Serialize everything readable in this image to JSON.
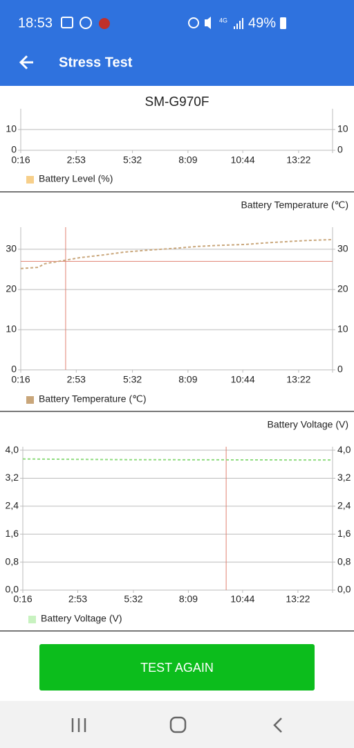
{
  "status_bar": {
    "time": "18:53",
    "network": "4G",
    "battery": "49%"
  },
  "app_bar": {
    "title": "Stress Test"
  },
  "device": "SM-G970F",
  "chart_data": [
    {
      "type": "line",
      "series": [
        {
          "name": "Battery Level (%)",
          "color": "#f7cf8a"
        }
      ],
      "xlim": [
        16,
        898
      ],
      "xticks": [
        {
          "value": 16,
          "label": "0:16"
        },
        {
          "value": 173,
          "label": "2:53"
        },
        {
          "value": 332,
          "label": "5:32"
        },
        {
          "value": 489,
          "label": "8:09"
        },
        {
          "value": 644,
          "label": "10:44"
        },
        {
          "value": 802,
          "label": "13:22"
        }
      ],
      "ylim": [
        0,
        20
      ],
      "yticks": [
        0,
        10
      ],
      "grid": true
    },
    {
      "type": "line",
      "title": "Battery Temperature (℃)",
      "x": [
        16,
        65,
        84,
        124,
        182,
        251,
        309,
        378,
        446,
        515,
        583,
        651,
        710,
        769,
        827,
        898
      ],
      "series": [
        {
          "name": "Battery Temperature (℃)",
          "color": "#c9a67a",
          "values": [
            25.2,
            25.5,
            26.4,
            27.0,
            27.9,
            28.6,
            29.3,
            29.8,
            30.2,
            30.7,
            31.0,
            31.2,
            31.6,
            31.9,
            32.2,
            32.4
          ]
        }
      ],
      "xlim": [
        16,
        898
      ],
      "xticks": [
        {
          "value": 16,
          "label": "0:16"
        },
        {
          "value": 173,
          "label": "2:53"
        },
        {
          "value": 332,
          "label": "5:32"
        },
        {
          "value": 489,
          "label": "8:09"
        },
        {
          "value": 644,
          "label": "10:44"
        },
        {
          "value": 802,
          "label": "13:22"
        }
      ],
      "ylim": [
        0,
        35.5
      ],
      "yticks": [
        0,
        10,
        20,
        30
      ],
      "grid": true,
      "crosshair": {
        "x": 143,
        "y": 27,
        "color": "#e08070"
      }
    },
    {
      "type": "line",
      "title": "Battery Voltage (V)",
      "x": [
        16,
        300,
        898
      ],
      "series": [
        {
          "name": "Battery Voltage (V)",
          "color": "#8fdc7f",
          "values": [
            3.75,
            3.73,
            3.72
          ]
        }
      ],
      "legend_color": "#c8f2c0",
      "xlim": [
        16,
        901
      ],
      "xticks": [
        {
          "value": 16,
          "label": "0:16"
        },
        {
          "value": 173,
          "label": "2:53"
        },
        {
          "value": 332,
          "label": "5:32"
        },
        {
          "value": 489,
          "label": "8:09"
        },
        {
          "value": 644,
          "label": "10:44"
        },
        {
          "value": 802,
          "label": "13:22"
        }
      ],
      "ylim": [
        0,
        4.1
      ],
      "yticks": [
        {
          "value": 0,
          "label": "0,0"
        },
        {
          "value": 0.8,
          "label": "0,8"
        },
        {
          "value": 1.6,
          "label": "1,6"
        },
        {
          "value": 2.4,
          "label": "2,4"
        },
        {
          "value": 3.2,
          "label": "3,2"
        },
        {
          "value": 4.0,
          "label": "4,0"
        }
      ],
      "grid": true,
      "crosshair": {
        "x": 597,
        "color": "#e08070"
      }
    }
  ],
  "button": {
    "label": "TEST AGAIN"
  }
}
